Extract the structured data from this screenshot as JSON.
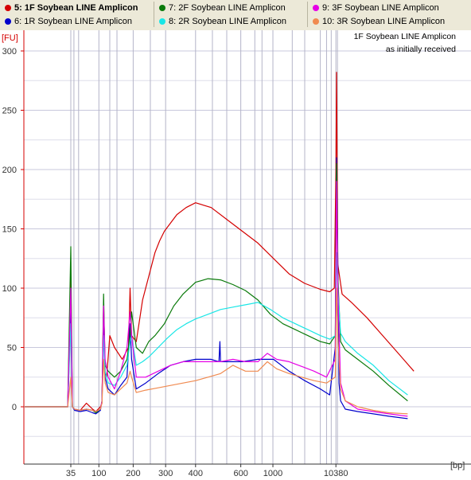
{
  "legend": {
    "items": [
      {
        "label": "5: 1F Soybean LINE Amplicon",
        "color": "#d40000",
        "bold": true
      },
      {
        "label": "6: 1R Soybean LINE Amplicon",
        "color": "#0000cc",
        "bold": false
      },
      {
        "label": "7: 2F Soybean LINE Amplicon",
        "color": "#0a7a0a",
        "bold": false
      },
      {
        "label": "8: 2R Soybean LINE Amplicon",
        "color": "#19e6e6",
        "bold": false
      },
      {
        "label": "9: 3F Soybean LINE Amplicon",
        "color": "#e600e6",
        "bold": false
      },
      {
        "label": "10: 3R Soybean LINE Amplicon",
        "color": "#f08a50",
        "bold": false
      }
    ]
  },
  "chart_data": {
    "type": "line",
    "annotation": [
      "1F Soybean LINE Amplicon",
      "as initially received"
    ],
    "ylabel": "[FU]",
    "xlabel": "[bp]",
    "ylim": [
      -40,
      310
    ],
    "yticks": [
      0,
      50,
      100,
      150,
      200,
      250,
      300
    ],
    "xticks": [
      "35",
      "100",
      "200",
      "300",
      "400",
      "600",
      "1000",
      "10380"
    ],
    "x_tick_positions_s": [
      0.0,
      0.09,
      0.2,
      0.304,
      0.4,
      0.545,
      0.648,
      0.85
    ],
    "grid": true,
    "series": [
      {
        "name": "5: 1F Soybean LINE Amplicon",
        "color": "#d40000",
        "x": [
          -0.15,
          -0.06,
          -0.01,
          0.0,
          0.005,
          0.012,
          0.03,
          0.05,
          0.07,
          0.08,
          0.095,
          0.1,
          0.105,
          0.11,
          0.115,
          0.125,
          0.14,
          0.165,
          0.185,
          0.19,
          0.195,
          0.21,
          0.23,
          0.25,
          0.27,
          0.285,
          0.3,
          0.32,
          0.34,
          0.37,
          0.4,
          0.45,
          0.5,
          0.55,
          0.6,
          0.65,
          0.7,
          0.75,
          0.8,
          0.83,
          0.845,
          0.85,
          0.852,
          0.856,
          0.87,
          0.9,
          0.95,
          1.0,
          1.05,
          1.1
        ],
        "y": [
          0,
          0,
          0,
          110,
          0,
          -2,
          -3,
          3,
          -2,
          -4,
          0,
          3,
          90,
          30,
          25,
          60,
          50,
          40,
          50,
          100,
          60,
          55,
          90,
          110,
          130,
          140,
          148,
          155,
          162,
          168,
          172,
          168,
          158,
          148,
          138,
          125,
          112,
          104,
          99,
          97,
          100,
          200,
          282,
          120,
          95,
          88,
          75,
          60,
          45,
          30
        ]
      },
      {
        "name": "6: 1R Soybean LINE Amplicon",
        "color": "#0000cc",
        "x": [
          -0.15,
          -0.06,
          -0.01,
          0.0,
          0.005,
          0.012,
          0.03,
          0.05,
          0.07,
          0.08,
          0.095,
          0.1,
          0.105,
          0.11,
          0.12,
          0.14,
          0.16,
          0.18,
          0.19,
          0.195,
          0.21,
          0.24,
          0.28,
          0.32,
          0.36,
          0.4,
          0.45,
          0.475,
          0.478,
          0.48,
          0.5,
          0.55,
          0.6,
          0.65,
          0.7,
          0.75,
          0.8,
          0.83,
          0.848,
          0.852,
          0.856,
          0.86,
          0.865,
          0.88,
          0.92,
          0.97,
          1.02,
          1.08
        ],
        "y": [
          0,
          0,
          0,
          80,
          0,
          -3,
          -4,
          -3,
          -5,
          -6,
          -3,
          5,
          80,
          25,
          15,
          10,
          18,
          25,
          70,
          40,
          15,
          20,
          28,
          35,
          38,
          40,
          40,
          38,
          55,
          38,
          38,
          38,
          40,
          40,
          30,
          22,
          15,
          10,
          50,
          210,
          120,
          20,
          5,
          -2,
          -4,
          -6,
          -8,
          -10
        ]
      },
      {
        "name": "7: 2F Soybean LINE Amplicon",
        "color": "#0a7a0a",
        "x": [
          -0.15,
          -0.06,
          -0.01,
          0.0,
          0.005,
          0.012,
          0.03,
          0.05,
          0.07,
          0.08,
          0.095,
          0.1,
          0.105,
          0.11,
          0.12,
          0.14,
          0.16,
          0.18,
          0.19,
          0.195,
          0.21,
          0.23,
          0.25,
          0.27,
          0.3,
          0.33,
          0.36,
          0.4,
          0.44,
          0.48,
          0.52,
          0.56,
          0.6,
          0.64,
          0.68,
          0.72,
          0.76,
          0.8,
          0.83,
          0.848,
          0.852,
          0.856,
          0.865,
          0.88,
          0.92,
          0.97,
          1.02,
          1.08
        ],
        "y": [
          0,
          0,
          0,
          135,
          0,
          -2,
          -3,
          -2,
          -3,
          -5,
          -2,
          5,
          95,
          35,
          30,
          25,
          30,
          40,
          60,
          80,
          50,
          45,
          55,
          60,
          70,
          85,
          95,
          105,
          108,
          107,
          103,
          98,
          90,
          78,
          70,
          65,
          60,
          55,
          53,
          60,
          205,
          110,
          55,
          48,
          40,
          30,
          18,
          5
        ]
      },
      {
        "name": "8: 2R Soybean LINE Amplicon",
        "color": "#19e6e6",
        "x": [
          -0.15,
          -0.06,
          -0.01,
          0.0,
          0.005,
          0.012,
          0.03,
          0.05,
          0.07,
          0.08,
          0.095,
          0.1,
          0.105,
          0.11,
          0.12,
          0.14,
          0.16,
          0.18,
          0.19,
          0.195,
          0.21,
          0.23,
          0.25,
          0.28,
          0.31,
          0.34,
          0.37,
          0.4,
          0.44,
          0.48,
          0.52,
          0.56,
          0.6,
          0.64,
          0.68,
          0.72,
          0.76,
          0.8,
          0.83,
          0.848,
          0.852,
          0.856,
          0.865,
          0.88,
          0.92,
          0.97,
          1.02,
          1.08
        ],
        "y": [
          0,
          0,
          0,
          70,
          0,
          -2,
          -3,
          -2,
          -3,
          -4,
          -2,
          4,
          60,
          30,
          20,
          18,
          25,
          35,
          55,
          60,
          35,
          38,
          42,
          50,
          58,
          65,
          70,
          74,
          78,
          82,
          84,
          86,
          88,
          82,
          75,
          70,
          65,
          60,
          57,
          60,
          130,
          100,
          62,
          55,
          45,
          35,
          22,
          10
        ]
      },
      {
        "name": "9: 3F Soybean LINE Amplicon",
        "color": "#e600e6",
        "x": [
          -0.15,
          -0.06,
          -0.01,
          0.0,
          0.005,
          0.012,
          0.03,
          0.05,
          0.07,
          0.08,
          0.095,
          0.1,
          0.105,
          0.11,
          0.12,
          0.14,
          0.16,
          0.18,
          0.19,
          0.195,
          0.21,
          0.24,
          0.28,
          0.32,
          0.36,
          0.4,
          0.44,
          0.48,
          0.52,
          0.56,
          0.6,
          0.63,
          0.66,
          0.7,
          0.74,
          0.78,
          0.82,
          0.848,
          0.852,
          0.856,
          0.865,
          0.88,
          0.92,
          0.97,
          1.02,
          1.08
        ],
        "y": [
          0,
          0,
          0,
          100,
          0,
          -2,
          -3,
          -2,
          -3,
          -4,
          -2,
          5,
          85,
          40,
          25,
          15,
          30,
          50,
          80,
          60,
          25,
          25,
          30,
          35,
          38,
          38,
          38,
          38,
          40,
          38,
          38,
          45,
          40,
          38,
          34,
          30,
          25,
          40,
          190,
          100,
          20,
          5,
          -2,
          -4,
          -6,
          -8
        ]
      },
      {
        "name": "10: 3R Soybean LINE Amplicon",
        "color": "#f08a50",
        "x": [
          -0.15,
          -0.06,
          -0.01,
          0.0,
          0.005,
          0.012,
          0.03,
          0.05,
          0.07,
          0.08,
          0.095,
          0.1,
          0.105,
          0.11,
          0.12,
          0.14,
          0.16,
          0.18,
          0.19,
          0.195,
          0.21,
          0.24,
          0.28,
          0.32,
          0.36,
          0.4,
          0.44,
          0.48,
          0.52,
          0.56,
          0.6,
          0.63,
          0.66,
          0.7,
          0.74,
          0.78,
          0.82,
          0.848,
          0.852,
          0.856,
          0.865,
          0.88,
          0.92,
          0.97,
          1.02,
          1.08
        ],
        "y": [
          0,
          0,
          0,
          25,
          0,
          -2,
          -3,
          -2,
          -3,
          -4,
          -2,
          3,
          40,
          20,
          12,
          10,
          15,
          20,
          30,
          25,
          12,
          14,
          16,
          18,
          20,
          22,
          25,
          28,
          35,
          30,
          30,
          38,
          32,
          28,
          25,
          22,
          20,
          25,
          100,
          60,
          15,
          5,
          0,
          -3,
          -5,
          -6
        ]
      }
    ]
  }
}
